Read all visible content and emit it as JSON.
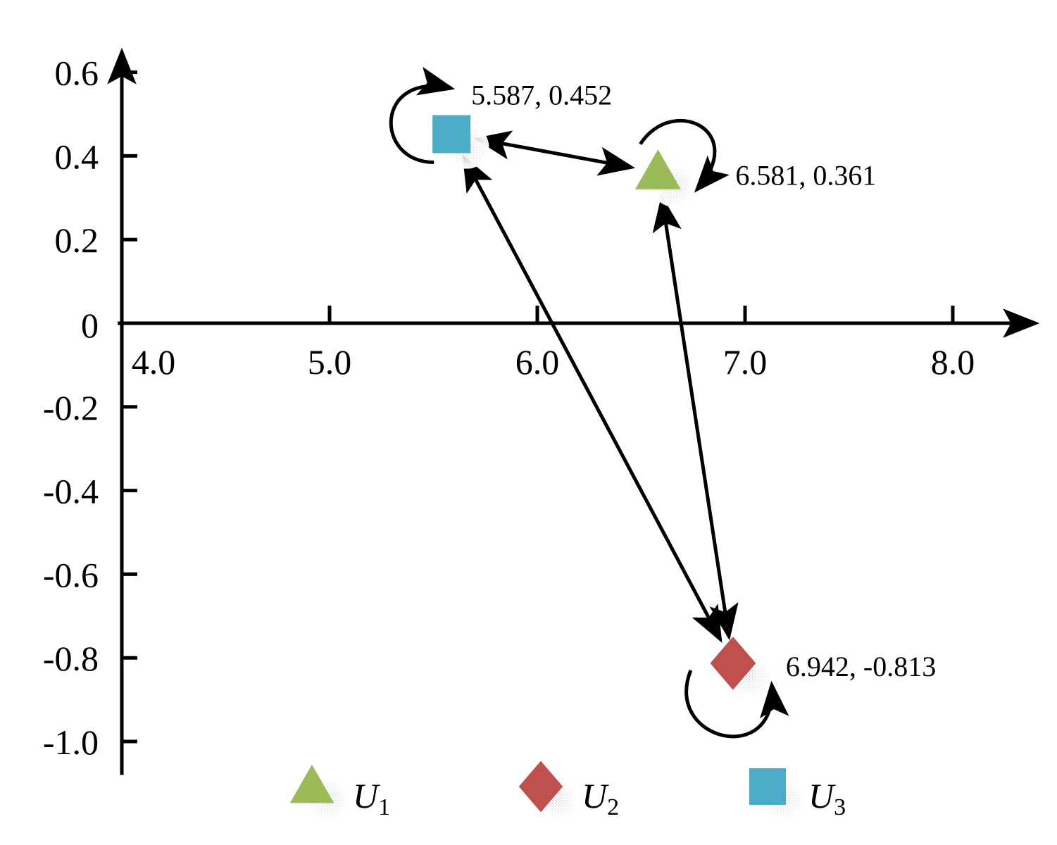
{
  "chart_data": {
    "type": "scatter",
    "title": "",
    "xlabel": "",
    "ylabel": "",
    "xlim": [
      3.98,
      8.4
    ],
    "ylim": [
      -1.08,
      0.65
    ],
    "x_ticks": [
      4.0,
      5.0,
      6.0,
      7.0,
      8.0
    ],
    "x_tick_labels": [
      "4.0",
      "5.0",
      "6.0",
      "7.0",
      "8.0"
    ],
    "y_ticks": [
      0.6,
      0.4,
      0.2,
      0,
      -0.2,
      -0.4,
      -0.6,
      -0.8,
      -1.0
    ],
    "y_tick_labels": [
      "0.6",
      "0.4",
      "0.2",
      "0",
      "-0.2",
      "-0.4",
      "-0.6",
      "-0.8",
      "-1.0"
    ],
    "grid": false,
    "legend_position": "bottom",
    "series": [
      {
        "name": "U1",
        "name_letter": "U",
        "name_sub": "1",
        "marker": "triangle",
        "color": "#9BBB59",
        "x": 6.581,
        "y": 0.361,
        "label": "6.581, 0.361"
      },
      {
        "name": "U2",
        "name_letter": "U",
        "name_sub": "2",
        "marker": "diamond",
        "color": "#C0504D",
        "x": 6.942,
        "y": -0.813,
        "label": "6.942, -0.813"
      },
      {
        "name": "U3",
        "name_letter": "U",
        "name_sub": "3",
        "marker": "square",
        "color": "#4BACC6",
        "x": 5.587,
        "y": 0.452,
        "label": "5.587, 0.452"
      }
    ],
    "transitions": [
      {
        "from": "U3",
        "to": "U1",
        "bidirectional": true
      },
      {
        "from": "U1",
        "to": "U2",
        "bidirectional": true
      },
      {
        "from": "U3",
        "to": "U2",
        "bidirectional": true
      }
    ],
    "self_loops": [
      "U1",
      "U2",
      "U3"
    ]
  }
}
